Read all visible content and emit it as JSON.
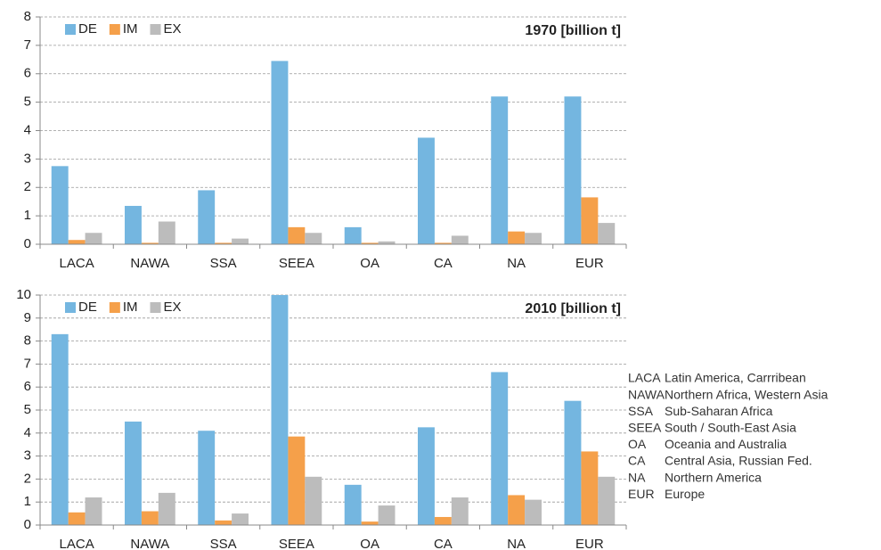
{
  "chart_data": [
    {
      "type": "bar",
      "title": "1970 [billion t]",
      "categories": [
        "LACA",
        "NAWA",
        "SSA",
        "SEEA",
        "OA",
        "CA",
        "NA",
        "EUR"
      ],
      "series": [
        {
          "name": "DE",
          "color": "#74b6e0",
          "values": [
            2.75,
            1.35,
            1.9,
            6.45,
            0.6,
            3.75,
            5.2,
            5.2
          ]
        },
        {
          "name": "IM",
          "color": "#f5a04a",
          "values": [
            0.15,
            0.05,
            0.05,
            0.6,
            0.05,
            0.05,
            0.45,
            1.65
          ]
        },
        {
          "name": "EX",
          "color": "#bcbcbc",
          "values": [
            0.4,
            0.8,
            0.2,
            0.4,
            0.1,
            0.3,
            0.4,
            0.75
          ]
        }
      ],
      "ylim": [
        0,
        8
      ],
      "yticks": [
        0,
        1,
        2,
        3,
        4,
        5,
        6,
        7,
        8
      ],
      "grid": true,
      "legend": "top-left"
    },
    {
      "type": "bar",
      "title": "2010 [billion t]",
      "categories": [
        "LACA",
        "NAWA",
        "SSA",
        "SEEA",
        "OA",
        "CA",
        "NA",
        "EUR"
      ],
      "series": [
        {
          "name": "DE",
          "color": "#74b6e0",
          "values": [
            8.3,
            4.5,
            4.1,
            10,
            1.75,
            4.25,
            6.65,
            5.4
          ]
        },
        {
          "name": "IM",
          "color": "#f5a04a",
          "values": [
            0.55,
            0.6,
            0.2,
            3.85,
            0.15,
            0.35,
            1.3,
            3.2
          ]
        },
        {
          "name": "EX",
          "color": "#bcbcbc",
          "values": [
            1.2,
            1.4,
            0.5,
            2.1,
            0.85,
            1.2,
            1.1,
            2.1
          ]
        }
      ],
      "ylim": [
        0,
        10
      ],
      "yticks": [
        0,
        1,
        2,
        3,
        4,
        5,
        6,
        7,
        8,
        9,
        10
      ],
      "grid": true,
      "legend": "top-left"
    }
  ],
  "glossary": {
    "rows": [
      [
        "LACA",
        "Latin America, Carrribean"
      ],
      [
        "NAWA",
        "Northern Africa, Western Asia"
      ],
      [
        "SSA",
        "Sub-Saharan Africa"
      ],
      [
        "SEEA",
        "South / South-East Asia"
      ],
      [
        "OA",
        "Oceania and Australia"
      ],
      [
        "CA",
        "Central Asia, Russian Fed."
      ],
      [
        "NA",
        "Northern America"
      ],
      [
        "EUR",
        "Europe"
      ]
    ]
  }
}
